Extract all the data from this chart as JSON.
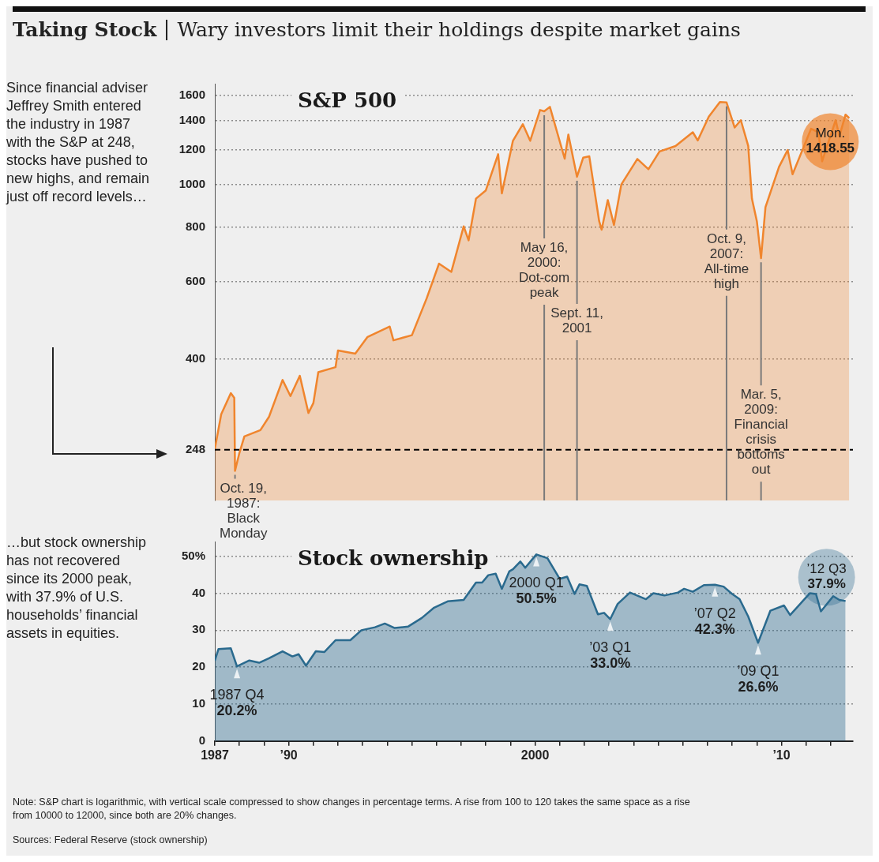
{
  "chart_data": [
    {
      "type": "area",
      "title": "Taking Stock",
      "subtitle": "Wary investors limit their holdings despite market gains",
      "log": "y",
      "grid": "y",
      "tick_labels": "y",
      "xlim": [
        1987,
        2012.9
      ],
      "ylim": [
        190,
        1700
      ],
      "yticks": [
        248,
        400,
        600,
        800,
        1000,
        1200,
        1400,
        1600
      ],
      "ref_lines": [
        {
          "axis": "y",
          "value": 248,
          "color": "#000000",
          "line_style": "dashed"
        }
      ],
      "x": [
        1987.0,
        1987.26,
        1987.65,
        1987.79,
        1987.82,
        1987.99,
        1988.2,
        1988.85,
        1989.2,
        1989.75,
        1990.07,
        1990.45,
        1990.8,
        1991.0,
        1991.2,
        1991.9,
        1992.0,
        1992.7,
        1993.2,
        1994.1,
        1994.25,
        1995.0,
        1995.6,
        1996.1,
        1996.6,
        1997.1,
        1997.3,
        1997.6,
        1998.0,
        1998.5,
        1998.65,
        1999.1,
        1999.5,
        1999.8,
        2000.2,
        2000.37,
        2000.6,
        2001.2,
        2001.35,
        2001.7,
        2001.95,
        2002.2,
        2002.6,
        2002.7,
        2002.95,
        2003.2,
        2003.5,
        2004.15,
        2004.6,
        2005.05,
        2005.7,
        2006.4,
        2006.6,
        2007.05,
        2007.5,
        2007.77,
        2008.1,
        2008.35,
        2008.65,
        2008.8,
        2009.0,
        2009.17,
        2009.35,
        2009.9,
        2010.25,
        2010.45,
        2011.2,
        2011.5,
        2011.65,
        2011.85,
        2012.2,
        2012.35,
        2012.6,
        2012.75
      ],
      "series": [
        {
          "name": "S&P 500",
          "color": "#f0852d",
          "values": [
            249,
            299,
            334,
            326,
            222,
            243,
            266,
            275,
            295,
            358,
            329,
            366,
            301,
            317,
            373,
            383,
            418,
            411,
            449,
            474,
            441,
            453,
            550,
            660,
            632,
            803,
            746,
            929,
            970,
            1173,
            955,
            1259,
            1374,
            1259,
            1480,
            1470,
            1505,
            1146,
            1301,
            1042,
            1152,
            1160,
            825,
            789,
            922,
            809,
            1001,
            1144,
            1084,
            1190,
            1225,
            1317,
            1261,
            1429,
            1543,
            1540,
            1350,
            1403,
            1225,
            929,
            825,
            679,
            888,
            1098,
            1199,
            1056,
            1341,
            1317,
            1130,
            1225,
            1403,
            1289,
            1445,
            1418.55
          ]
        }
      ],
      "annotations": [
        "Since financial adviser Jeffrey Smith entered the industry in 1987 with the S&P at 248, stocks have pushed to new highs, and remain just off record levels…",
        {
          "text": "Oct. 19, 1987: Black Monday",
          "x": 1987.82,
          "y": 222
        },
        {
          "text": "May 16, 2000: Dot-com peak",
          "x": 2000.37,
          "y": 1470
        },
        {
          "text": "Sept. 11, 2001",
          "x": 2001.7,
          "y": 1042
        },
        {
          "text": "Oct. 9, 2007: All-time high",
          "x": 2007.77,
          "y": 1540
        },
        {
          "text": "Mar. 5, 2009: Financial crisis bottoms out",
          "x": 2009.17,
          "y": 679
        },
        {
          "text": "Mon. 1418.55",
          "x": 2012.75,
          "y": 1418.55
        }
      ]
    },
    {
      "type": "area",
      "grid": "y",
      "xlim": [
        1987,
        2012.9
      ],
      "ylim": [
        0,
        54
      ],
      "yticks": [
        0,
        10,
        20,
        30,
        40,
        {
          "value": 50,
          "label": "50%"
        }
      ],
      "xticks": [
        {
          "value": 1987,
          "label": "1987"
        },
        {
          "value": 1988,
          "label": null
        },
        {
          "value": 1989,
          "label": null
        },
        {
          "value": 1990,
          "label": "’90"
        },
        {
          "value": 1991,
          "label": null
        },
        {
          "value": 1992,
          "label": null
        },
        {
          "value": 1993,
          "label": null
        },
        {
          "value": 1994,
          "label": null
        },
        {
          "value": 1995,
          "label": null
        },
        {
          "value": 1996,
          "label": null
        },
        {
          "value": 1997,
          "label": null
        },
        {
          "value": 1998,
          "label": null
        },
        {
          "value": 1999,
          "label": null
        },
        {
          "value": 2000,
          "label": "2000"
        },
        {
          "value": 2001,
          "label": null
        },
        {
          "value": 2002,
          "label": null
        },
        {
          "value": 2003,
          "label": null
        },
        {
          "value": 2004,
          "label": null
        },
        {
          "value": 2005,
          "label": null
        },
        {
          "value": 2006,
          "label": null
        },
        {
          "value": 2007,
          "label": null
        },
        {
          "value": 2008,
          "label": null
        },
        {
          "value": 2009,
          "label": null
        },
        {
          "value": 2010,
          "label": "’10"
        },
        {
          "value": 2011,
          "label": null
        },
        {
          "value": 2012,
          "label": null
        }
      ],
      "x": [
        1987.0,
        1987.15,
        1987.65,
        1987.9,
        1988.4,
        1988.8,
        1989.2,
        1989.75,
        1990.15,
        1990.4,
        1990.7,
        1991.1,
        1991.45,
        1991.9,
        1992.5,
        1992.95,
        1993.5,
        1993.9,
        1994.3,
        1994.85,
        1995.4,
        1995.9,
        1996.45,
        1997.1,
        1997.6,
        1997.85,
        1998.1,
        1998.4,
        1998.65,
        1998.95,
        1999.1,
        1999.4,
        1999.6,
        2000.05,
        2000.5,
        2001.0,
        2001.3,
        2001.6,
        2001.8,
        2002.1,
        2002.55,
        2002.8,
        2003.05,
        2003.35,
        2003.85,
        2004.5,
        2004.8,
        2005.25,
        2005.8,
        2006.05,
        2006.4,
        2006.85,
        2007.3,
        2007.65,
        2008.0,
        2008.3,
        2008.65,
        2009.05,
        2009.55,
        2010.1,
        2010.35,
        2011.15,
        2011.4,
        2011.6,
        2012.1,
        2012.35,
        2012.6
      ],
      "series": [
        {
          "name": "Stock ownership",
          "color": "#2a6a8e",
          "values": [
            21.8,
            24.9,
            25.1,
            20.2,
            21.8,
            21.2,
            22.4,
            24.3,
            22.9,
            23.5,
            20.4,
            24.3,
            24.1,
            27.3,
            27.3,
            30.0,
            30.8,
            31.8,
            30.6,
            31.0,
            33.3,
            36.1,
            37.8,
            38.2,
            42.9,
            42.9,
            44.9,
            45.3,
            41.2,
            45.9,
            46.5,
            48.6,
            46.9,
            50.5,
            49.5,
            43.9,
            44.5,
            39.8,
            42.4,
            42.0,
            34.3,
            34.7,
            33.0,
            37.1,
            40.2,
            38.4,
            40.0,
            39.4,
            40.2,
            41.2,
            40.4,
            42.2,
            42.3,
            41.8,
            39.8,
            38.4,
            33.7,
            26.6,
            35.3,
            36.7,
            34.1,
            40.0,
            39.8,
            35.1,
            39.2,
            38.2,
            37.9
          ]
        }
      ],
      "annotations": [
        "…but stock ownership has not recovered since its 2000 peak, with 37.9% of U.S. households’ financial assets in equities.",
        {
          "text": "1987 Q4 20.2%",
          "x": 1987.9,
          "y": 20.2
        },
        {
          "text": "2000 Q1 50.5%",
          "x": 2000.05,
          "y": 50.5
        },
        {
          "text": "’03 Q1 33.0%",
          "x": 2003.05,
          "y": 33.0
        },
        {
          "text": "’07 Q2 42.3%",
          "x": 2007.3,
          "y": 42.3
        },
        {
          "text": "’09 Q1 26.6%",
          "x": 2009.05,
          "y": 26.6
        },
        {
          "text": "’12 Q3 37.9%",
          "x": 2012.6,
          "y": 37.9
        },
        "Note: S&P chart is logarithmic, with vertical scale compressed to show changes in percentage terms. A rise from 100 to 120 takes the same space as a rise from 10000 to 12000, since both are 20% changes.",
        "Sources: Federal Reserve (stock ownership)"
      ]
    }
  ]
}
